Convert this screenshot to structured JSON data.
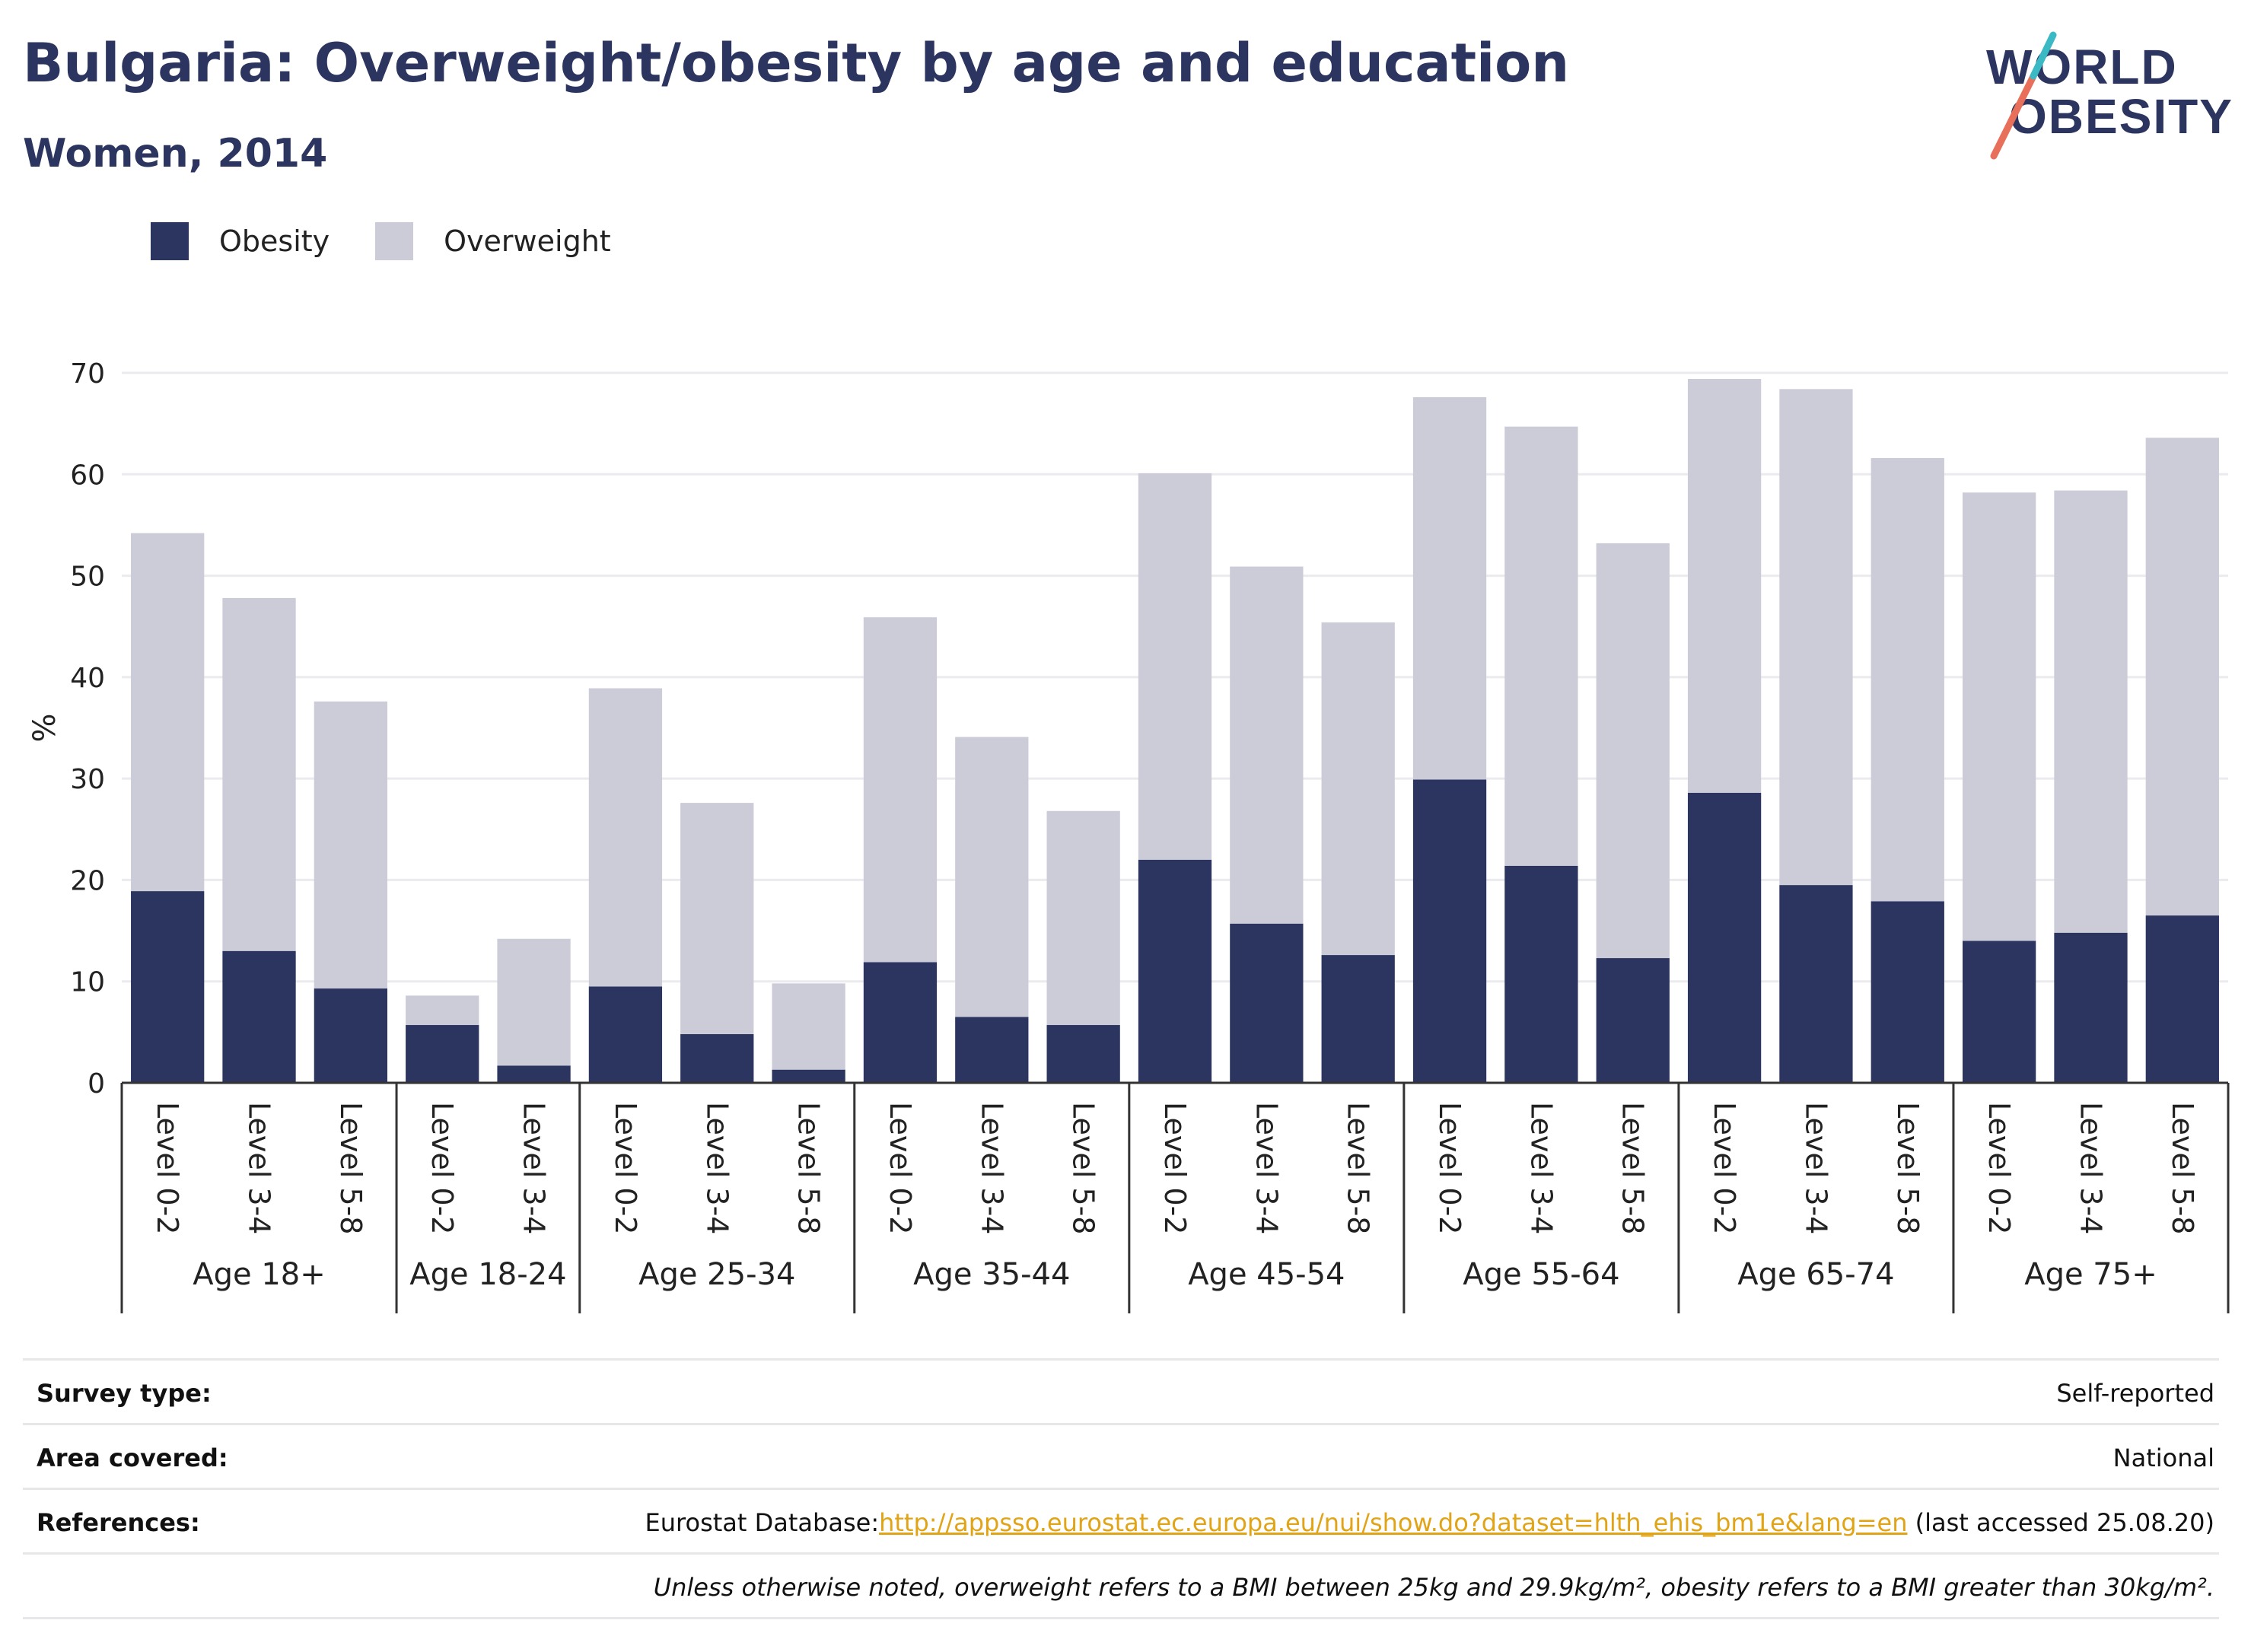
{
  "header": {
    "title": "Bulgaria: Overweight/obesity by age and education",
    "subtitle": "Women, 2014"
  },
  "logo": {
    "line1": "WORLD",
    "line2": "OBESITY"
  },
  "legend": [
    {
      "label": "Obesity",
      "color": "#2b3560"
    },
    {
      "label": "Overweight",
      "color": "#cbccd8"
    }
  ],
  "chart_data": {
    "type": "bar",
    "stacked": true,
    "ylabel": "%",
    "ylim": [
      0,
      70
    ],
    "yticks": [
      0,
      10,
      20,
      30,
      40,
      50,
      60,
      70
    ],
    "grid": true,
    "legend_position": "top-left",
    "groups": [
      {
        "label": "Age 18+",
        "levels": [
          "Level 0-2",
          "Level 3-4",
          "Level 5-8"
        ]
      },
      {
        "label": "Age 18-24",
        "levels": [
          "Level 0-2",
          "Level 3-4"
        ]
      },
      {
        "label": "Age 25-34",
        "levels": [
          "Level 0-2",
          "Level 3-4",
          "Level 5-8"
        ]
      },
      {
        "label": "Age 35-44",
        "levels": [
          "Level 0-2",
          "Level 3-4",
          "Level 5-8"
        ]
      },
      {
        "label": "Age 45-54",
        "levels": [
          "Level 0-2",
          "Level 3-4",
          "Level 5-8"
        ]
      },
      {
        "label": "Age 55-64",
        "levels": [
          "Level 0-2",
          "Level 3-4",
          "Level 5-8"
        ]
      },
      {
        "label": "Age 65-74",
        "levels": [
          "Level 0-2",
          "Level 3-4",
          "Level 5-8"
        ]
      },
      {
        "label": "Age 75+",
        "levels": [
          "Level 0-2",
          "Level 3-4",
          "Level 5-8"
        ]
      }
    ],
    "series": [
      {
        "name": "Obesity",
        "color": "#2b3560",
        "values": [
          18.9,
          13.0,
          9.3,
          5.7,
          1.7,
          9.5,
          4.8,
          1.3,
          11.9,
          6.5,
          5.7,
          22.0,
          15.7,
          12.6,
          29.9,
          21.4,
          12.3,
          28.6,
          19.5,
          17.9,
          14.0,
          14.8,
          16.5
        ]
      },
      {
        "name": "Overweight",
        "color": "#cbccd8",
        "values": [
          35.3,
          34.8,
          28.3,
          2.9,
          12.5,
          29.4,
          22.8,
          8.5,
          34.0,
          27.6,
          21.1,
          38.1,
          35.2,
          32.8,
          37.7,
          43.3,
          40.9,
          40.8,
          48.9,
          43.7,
          44.2,
          43.6,
          47.1
        ]
      }
    ]
  },
  "info": [
    {
      "label": "Survey type:",
      "value": "Self-reported"
    },
    {
      "label": "Area covered:",
      "value": "National"
    },
    {
      "label": "References:",
      "prefix": "Eurostat Database:",
      "link": "http://appsso.eurostat.ec.europa.eu/nui/show.do?dataset=hlth_ehis_bm1e&lang=en",
      "suffix": " (last accessed 25.08.20)"
    },
    {
      "label": "",
      "value": "Unless otherwise noted, overweight refers to a BMI between 25kg and 29.9kg/m², obesity refers to a BMI greater than 30kg/m²."
    }
  ]
}
